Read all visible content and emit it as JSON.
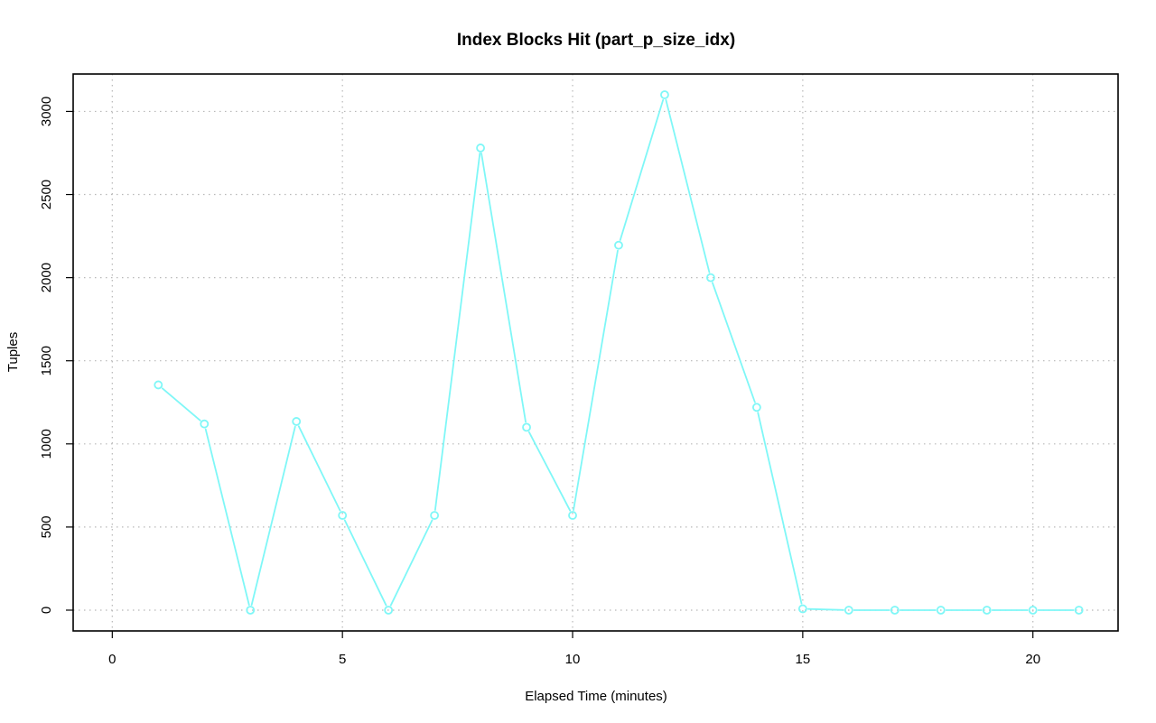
{
  "chart_data": {
    "type": "line",
    "title": "Index Blocks Hit (part_p_size_idx)",
    "xlabel": "Elapsed Time (minutes)",
    "ylabel": "Tuples",
    "xlim": [
      -0.85,
      21.85
    ],
    "ylim": [
      -125,
      3225
    ],
    "x_ticks": [
      0,
      5,
      10,
      15,
      20
    ],
    "y_ticks": [
      0,
      500,
      1000,
      1500,
      2000,
      2500,
      3000
    ],
    "x_tick_labels": [
      "0",
      "5",
      "10",
      "15",
      "20"
    ],
    "y_tick_labels": [
      "0",
      "500",
      "1000",
      "1500",
      "2000",
      "2500",
      "3000"
    ],
    "grid": true,
    "series": [
      {
        "color": "#7ff7f7",
        "marker": "open-circle",
        "x": [
          1,
          2,
          3,
          4,
          5,
          6,
          7,
          8,
          9,
          10,
          11,
          12,
          13,
          14,
          15,
          16,
          17,
          18,
          19,
          20,
          21
        ],
        "y": [
          1355,
          1120,
          0,
          1135,
          570,
          0,
          570,
          2780,
          1100,
          570,
          2195,
          3100,
          2000,
          1220,
          8,
          0,
          0,
          0,
          0,
          0,
          0
        ]
      }
    ]
  }
}
